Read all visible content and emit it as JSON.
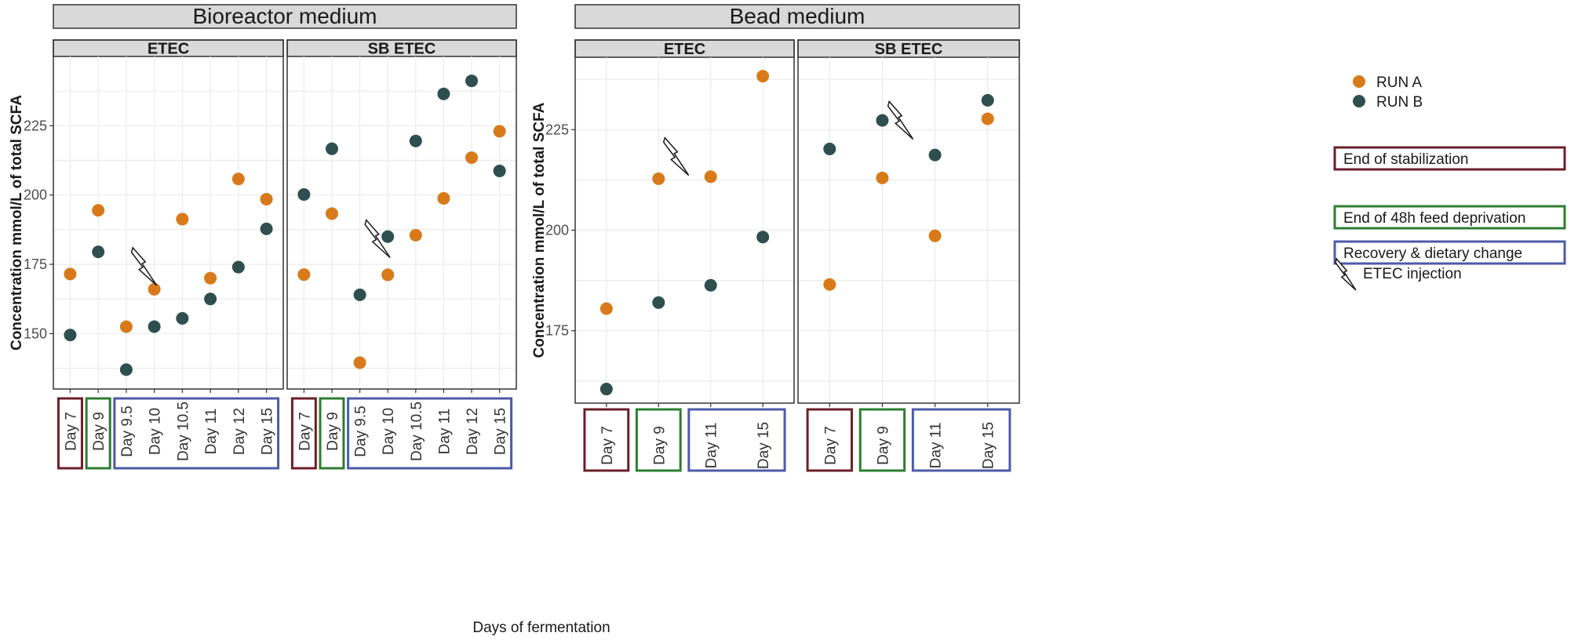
{
  "colors": {
    "run_a": "#D87A1A",
    "run_b": "#2F4F4F",
    "stabilization": "#6B1F2A",
    "feed_deprivation": "#2E7D32",
    "recovery": "#4C5BA8"
  },
  "icons": {
    "etec_injection": "lightning-bolt-icon"
  },
  "chart_data": {
    "type": "scatter",
    "xlabel": "Days of fermentation",
    "legend": {
      "placement": "right",
      "series": [
        {
          "name": "RUN A",
          "color": "#D87A1A"
        },
        {
          "name": "RUN B",
          "color": "#2F4F4F"
        }
      ],
      "boxes": [
        {
          "label": "End of stabilization",
          "color": "#6B1F2A"
        },
        {
          "label": "End of 48h feed deprivation",
          "color": "#2E7D32"
        },
        {
          "label": "Recovery & dietary change",
          "color": "#4C5BA8"
        }
      ],
      "injection_label": "ETEC injection"
    },
    "groups": [
      {
        "title": "Bioreactor medium",
        "ylabel": "Concentration mmol/L of total SCFA",
        "ylim": [
          130,
          250
        ],
        "yticks": [
          150,
          175,
          200,
          225
        ],
        "categories": [
          "Day 7",
          "Day 9",
          "Day 9.5",
          "Day 10",
          "Day 10.5",
          "Day 11",
          "Day 12",
          "Day 15"
        ],
        "phases": [
          "stabilization",
          "feed_deprivation",
          "recovery",
          "recovery",
          "recovery",
          "recovery",
          "recovery",
          "recovery"
        ],
        "panels": [
          {
            "title": "ETEC",
            "injection_day": "Day 10",
            "series": [
              {
                "name": "RUN A",
                "values": [
                  171.5,
                  194.5,
                  152.5,
                  166,
                  191.3,
                  170,
                  205.8,
                  198.5
                ]
              },
              {
                "name": "RUN B",
                "values": [
                  149.5,
                  179.5,
                  137,
                  152.5,
                  155.5,
                  162.5,
                  174,
                  187.8
                ]
              }
            ]
          },
          {
            "title": "SB ETEC",
            "injection_day": "Day 10",
            "series": [
              {
                "name": "RUN A",
                "values": [
                  171.3,
                  193.3,
                  139.5,
                  171.2,
                  185.5,
                  198.8,
                  213.5,
                  223
                ]
              },
              {
                "name": "RUN B",
                "values": [
                  200.2,
                  216.7,
                  164,
                  185,
                  219.5,
                  236.5,
                  241.2,
                  208.7
                ]
              }
            ]
          }
        ]
      },
      {
        "title": "Bead medium",
        "ylabel": "Concentration mmol/L of total SCFA",
        "ylim": [
          157,
          243
        ],
        "yticks": [
          175,
          200,
          225
        ],
        "categories": [
          "Day 7",
          "Day 9",
          "Day 11",
          "Day 15"
        ],
        "phases": [
          "stabilization",
          "feed_deprivation",
          "recovery",
          "recovery"
        ],
        "panels": [
          {
            "title": "ETEC",
            "injection_day": "Day 10",
            "series": [
              {
                "name": "RUN A",
                "values": [
                  180.5,
                  212.8,
                  213.3,
                  238.3
                ]
              },
              {
                "name": "RUN B",
                "values": [
                  160.5,
                  182,
                  186.3,
                  198.3
                ]
              }
            ]
          },
          {
            "title": "SB ETEC",
            "injection_day": "Day 10",
            "series": [
              {
                "name": "RUN A",
                "values": [
                  186.5,
                  213,
                  198.6,
                  227.7
                ]
              },
              {
                "name": "RUN B",
                "values": [
                  220.2,
                  227.3,
                  218.7,
                  232.3
                ]
              }
            ]
          }
        ]
      }
    ]
  }
}
